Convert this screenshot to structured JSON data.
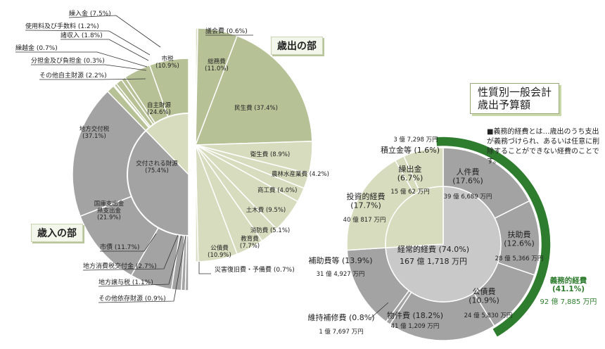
{
  "titles": {
    "revenue": "歳入の部",
    "expenditure": "歳出の部",
    "nature_line1": "性質別一般会計",
    "nature_line2": "歳出予算額"
  },
  "note": "■義務的経費とは…歳出のうち支出が義務づけられ、あるいは任意に削除することができない経費のことです。",
  "colors": {
    "grey_dark": "#a3a3a3",
    "grey_light": "#c9c9c9",
    "green_mid": "#b6c196",
    "green_light": "#d6dcbd",
    "green_dark": "#2e7d2e"
  },
  "chart_data": [
    {
      "type": "pie",
      "name": "歳入の部",
      "inner": [
        {
          "label": "自主財源",
          "value": 24.6,
          "display": "自主財源\n(24.6%)"
        },
        {
          "label": "交付される財源",
          "value": 75.4,
          "display": "交付される財源\n(75.4%)"
        }
      ],
      "outer": [
        {
          "label": "市税",
          "value": 10.9,
          "display": "市税\n(10.9%)"
        },
        {
          "label": "繰入金",
          "value": 7.5,
          "display": "繰入金 (7.5%)"
        },
        {
          "label": "使用料及び手数料",
          "value": 1.2,
          "display": "使用料及び手数料 (1.2%)"
        },
        {
          "label": "諸収入",
          "value": 1.8,
          "display": "諸収入 (1.8%)"
        },
        {
          "label": "繰越金",
          "value": 0.7,
          "display": "繰越金 (0.7%)"
        },
        {
          "label": "分担金及び負担金",
          "value": 0.3,
          "display": "分担金及び負担金 (0.3%)"
        },
        {
          "label": "その他自主財源",
          "value": 2.2,
          "display": "その他自主財源 (2.2%)"
        },
        {
          "label": "地方交付税",
          "value": 37.1,
          "display": "地方交付税\n(37.1%)"
        },
        {
          "label": "国庫支出金 県支出金",
          "value": 21.9,
          "display": "国庫支出金\n県支出金\n(21.9%)"
        },
        {
          "label": "市債",
          "value": 11.7,
          "display": "市債 (11.7%)"
        },
        {
          "label": "地方消費税交付金",
          "value": 2.7,
          "display": "地方消費税交付金 (2.7%)"
        },
        {
          "label": "地方譲与税",
          "value": 1.1,
          "display": "地方譲与税 (1.1%)"
        },
        {
          "label": "その他依存財源",
          "value": 0.9,
          "display": "その他依存財源 (0.9%)"
        }
      ]
    },
    {
      "type": "pie",
      "name": "歳出の部",
      "slices": [
        {
          "label": "議会費",
          "value": 0.6,
          "display": "議会費 (0.6%)"
        },
        {
          "label": "総務費",
          "value": 11.0,
          "display": "総務費\n(11.0%)"
        },
        {
          "label": "民生費",
          "value": 37.4,
          "display": "民生費 (37.4%)"
        },
        {
          "label": "衛生費",
          "value": 8.9,
          "display": "衛生費 (8.9%)"
        },
        {
          "label": "農林水産業費",
          "value": 4.2,
          "display": "農林水産業費 (4.2%)"
        },
        {
          "label": "商工費",
          "value": 4.0,
          "display": "商工費 (4.0%)"
        },
        {
          "label": "土木費",
          "value": 9.5,
          "display": "土木費 (9.5%)"
        },
        {
          "label": "消防費",
          "value": 5.1,
          "display": "消防費 (5.1%)"
        },
        {
          "label": "教育費",
          "value": 7.7,
          "display": "教育費\n(7.7%)"
        },
        {
          "label": "公債費",
          "value": 10.9,
          "display": "公債費\n(10.9%)"
        },
        {
          "label": "災害復旧費・予備費",
          "value": 0.7,
          "display": "災害復旧費・予備費 (0.7%)"
        }
      ]
    },
    {
      "type": "pie",
      "name": "性質別一般会計歳出予算額",
      "inner": [
        {
          "label": "経常的経費",
          "value": 74.0,
          "display": "経常的経費 (74.0%)",
          "amount": "167 億 1,718 万円"
        }
      ],
      "outer": [
        {
          "label": "人件費",
          "value": 17.6,
          "display": "人件費\n(17.6%)",
          "amount": "39 億 6,689 万円",
          "group": "義務的経費"
        },
        {
          "label": "扶助費",
          "value": 12.6,
          "display": "扶助費\n(12.6%)",
          "amount": "28 億 5,366 万円",
          "group": "義務的経費"
        },
        {
          "label": "公債費",
          "value": 10.9,
          "display": "公債費\n(10.9%)",
          "amount": "24 億 5,830 万円",
          "group": "義務的経費"
        },
        {
          "label": "物件費",
          "value": 18.2,
          "display": "物件費 (18.2%)",
          "amount": "41 億 1,209 万円"
        },
        {
          "label": "維持補修費",
          "value": 0.8,
          "display": "維持補修費 (0.8%)",
          "amount": "1 億 7,697 万円"
        },
        {
          "label": "補助費等",
          "value": 13.9,
          "display": "補助費等 (13.9%)",
          "amount": "31 億 4,927 万円"
        },
        {
          "label": "投資的経費",
          "value": 17.7,
          "display": "投資的経費\n(17.7%)",
          "amount": "40 億 817 万円"
        },
        {
          "label": "積立金等",
          "value": 1.6,
          "display": "積立金等 (1.6%)",
          "amount": "3 億 7,298 万円"
        },
        {
          "label": "繰出金",
          "value": 6.7,
          "display": "繰出金\n(6.7%)",
          "amount": "15 億 62 万円"
        }
      ],
      "highlight": {
        "label": "義務的経費",
        "value": 41.1,
        "display": "義務的経費\n(41.1%)",
        "amount": "92 億 7,885 万円"
      }
    }
  ]
}
